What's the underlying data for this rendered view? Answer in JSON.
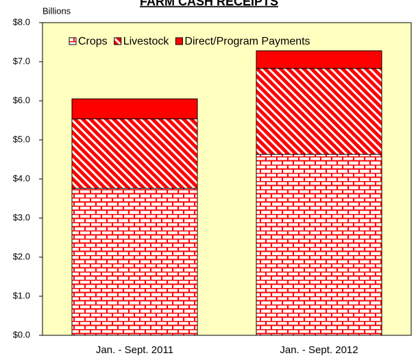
{
  "chart_data": {
    "type": "stacked_bar",
    "title": "FARM CASH RECEIPTS",
    "y_label": "Billions",
    "categories": [
      "Jan. - Sept. 2011",
      "Jan. - Sept. 2012"
    ],
    "series": [
      {
        "name": "Crops",
        "color": "#ff0000",
        "pattern": "brick",
        "values": [
          3.76,
          4.63
        ]
      },
      {
        "name": "Livestock",
        "color": "#ff0000",
        "pattern": "diagonal",
        "values": [
          1.78,
          2.2
        ]
      },
      {
        "name": "Direct/Program Payments",
        "color": "#ff0000",
        "pattern": "solid",
        "values": [
          0.51,
          0.45
        ]
      }
    ],
    "ylim": [
      0,
      8
    ],
    "yticks": [
      {
        "value": 0,
        "label": "$0.0"
      },
      {
        "value": 1,
        "label": "$1.0"
      },
      {
        "value": 2,
        "label": "$2.0"
      },
      {
        "value": 3,
        "label": "$3.0"
      },
      {
        "value": 4,
        "label": "$4.0"
      },
      {
        "value": 5,
        "label": "$5.0"
      },
      {
        "value": 6,
        "label": "$6.0"
      },
      {
        "value": 7,
        "label": "$7.0"
      },
      {
        "value": 8,
        "label": "$8.0"
      }
    ],
    "background": "#ffffc0",
    "legend": "top"
  }
}
